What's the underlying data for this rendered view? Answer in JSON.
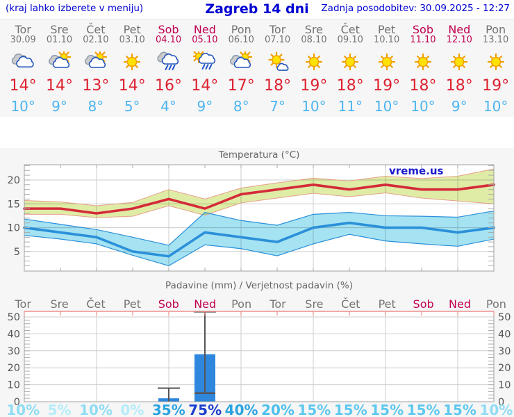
{
  "header": {
    "left_note": "(kraj lahko izberete v meniju)",
    "title": "Zagreb 14 dni",
    "updated": "Zadnja posodobitev: 30.09.2025 - 12:27"
  },
  "days": [
    {
      "name": "Tor",
      "date": "30.09",
      "weekend": false,
      "icon": "cloudy",
      "tmax_label": "14°",
      "tmin_label": "10°",
      "pop_label": "10%",
      "pop_color": "#8fdcf4"
    },
    {
      "name": "Sre",
      "date": "01.10",
      "weekend": false,
      "icon": "partly-cloudy",
      "tmax_label": "14°",
      "tmin_label": "9°",
      "pop_label": "5%",
      "pop_color": "#b4ecfa"
    },
    {
      "name": "Čet",
      "date": "02.10",
      "weekend": false,
      "icon": "partly-cloudy",
      "tmax_label": "13°",
      "tmin_label": "8°",
      "pop_label": "10%",
      "pop_color": "#8fdcf4"
    },
    {
      "name": "Pet",
      "date": "03.10",
      "weekend": false,
      "icon": "sunny",
      "tmax_label": "14°",
      "tmin_label": "5°",
      "pop_label": "0%",
      "pop_color": "#b4ecfa"
    },
    {
      "name": "Sob",
      "date": "04.10",
      "weekend": true,
      "icon": "rain",
      "tmax_label": "16°",
      "tmin_label": "4°",
      "pop_label": "35%",
      "pop_color": "#2ba3e0"
    },
    {
      "name": "Ned",
      "date": "05.10",
      "weekend": true,
      "icon": "sun-rain",
      "tmax_label": "14°",
      "tmin_label": "9°",
      "pop_label": "75%",
      "pop_color": "#1d3ecc"
    },
    {
      "name": "Pon",
      "date": "06.10",
      "weekend": false,
      "icon": "partly-cloudy",
      "tmax_label": "17°",
      "tmin_label": "8°",
      "pop_label": "40%",
      "pop_color": "#2ba3e0"
    },
    {
      "name": "Tor",
      "date": "07.10",
      "weekend": false,
      "icon": "sun-cloud",
      "tmax_label": "18°",
      "tmin_label": "7°",
      "pop_label": "20%",
      "pop_color": "#4cc0ec"
    },
    {
      "name": "Sre",
      "date": "08.10",
      "weekend": false,
      "icon": "sunny",
      "tmax_label": "19°",
      "tmin_label": "10°",
      "pop_label": "15%",
      "pop_color": "#5ec8ee"
    },
    {
      "name": "Čet",
      "date": "09.10",
      "weekend": false,
      "icon": "sunny",
      "tmax_label": "18°",
      "tmin_label": "11°",
      "pop_label": "15%",
      "pop_color": "#5ec8ee"
    },
    {
      "name": "Pet",
      "date": "10.10",
      "weekend": false,
      "icon": "sunny",
      "tmax_label": "19°",
      "tmin_label": "10°",
      "pop_label": "15%",
      "pop_color": "#5ec8ee"
    },
    {
      "name": "Sob",
      "date": "11.10",
      "weekend": true,
      "icon": "sunny",
      "tmax_label": "18°",
      "tmin_label": "10°",
      "pop_label": "15%",
      "pop_color": "#5ec8ee"
    },
    {
      "name": "Ned",
      "date": "12.10",
      "weekend": true,
      "icon": "sunny",
      "tmax_label": "18°",
      "tmin_label": "9°",
      "pop_label": "15%",
      "pop_color": "#5ec8ee"
    },
    {
      "name": "Pon",
      "date": "13.10",
      "weekend": false,
      "icon": "sunny",
      "tmax_label": "19°",
      "tmin_label": "10°",
      "pop_label": "10%",
      "pop_color": "#8fdcf4"
    }
  ],
  "chart_data": [
    {
      "type": "line",
      "title": "Temperatura (°C)",
      "watermark": "vreme.us",
      "categories": [
        "Tor",
        "Sre",
        "Čet",
        "Pet",
        "Sob",
        "Ned",
        "Pon",
        "Tor",
        "Sre",
        "Čet",
        "Pet",
        "Sob",
        "Ned",
        "Pon"
      ],
      "ylim": [
        1,
        23
      ],
      "yticks": [
        5,
        10,
        15,
        20
      ],
      "grid": true,
      "series": [
        {
          "name": "max_temp",
          "color": "#d42b3a",
          "values": [
            14,
            14,
            13,
            14,
            16,
            14,
            17,
            18,
            19,
            18,
            19,
            18,
            18,
            19
          ]
        },
        {
          "name": "max_range_upper",
          "values": [
            15.7,
            15.4,
            14.6,
            15.3,
            18.0,
            16.0,
            18.3,
            19.4,
            20.4,
            19.8,
            20.8,
            20.3,
            20.8,
            22.3
          ]
        },
        {
          "name": "max_range_lower",
          "values": [
            12.8,
            12.8,
            12.1,
            12.4,
            14.6,
            12.6,
            15.2,
            16.2,
            17.2,
            16.5,
            17.3,
            16.2,
            15.6,
            15.0
          ]
        },
        {
          "name": "min_temp",
          "color": "#2b90d9",
          "values": [
            10,
            9,
            8,
            5,
            4,
            9,
            8,
            7,
            10,
            11,
            10,
            10,
            9,
            10
          ]
        },
        {
          "name": "min_range_upper",
          "values": [
            11.8,
            10.7,
            9.6,
            8.0,
            6.3,
            13.2,
            11.5,
            10.5,
            12.8,
            13.2,
            12.5,
            12.4,
            12.2,
            13.5
          ]
        },
        {
          "name": "min_range_lower",
          "values": [
            8.4,
            7.6,
            6.6,
            4.2,
            2.0,
            6.4,
            5.6,
            4.1,
            6.6,
            8.6,
            7.2,
            6.6,
            6.1,
            7.6
          ]
        }
      ]
    },
    {
      "type": "bar",
      "title": "Padavine (mm) / Verjetnost padavin (%)",
      "categories": [
        "Tor",
        "Sre",
        "Čet",
        "Pet",
        "Sob",
        "Ned",
        "Pon",
        "Tor",
        "Sre",
        "Čet",
        "Pet",
        "Sob",
        "Ned",
        "Pon"
      ],
      "weekend_index": [
        4,
        5,
        11,
        12
      ],
      "values": [
        0,
        0,
        0,
        0,
        2,
        28,
        0,
        0,
        0,
        0,
        0,
        0,
        0,
        0
      ],
      "range_low": [
        null,
        null,
        null,
        null,
        0,
        5,
        null,
        null,
        null,
        null,
        null,
        null,
        null,
        null
      ],
      "range_high": [
        null,
        null,
        null,
        null,
        8,
        53,
        null,
        null,
        null,
        null,
        null,
        null,
        null,
        null
      ],
      "probability_pct": [
        10,
        5,
        10,
        0,
        35,
        75,
        40,
        20,
        15,
        15,
        15,
        15,
        15,
        10
      ],
      "ylim": [
        0,
        50
      ],
      "yticks": [
        0,
        10,
        20,
        30,
        40,
        50
      ],
      "grid": true
    }
  ],
  "colors": {
    "header_blue": "#0000d2",
    "weekday_gray": "#737373",
    "weekend_red": "#c00050",
    "tmax_red": "#de2130",
    "tmin_blue": "#4cb4f0",
    "max_line": "#d42b3a",
    "max_band": "#dfeca6",
    "max_band_edge": "#e8a08c",
    "min_line": "#2b90d9",
    "min_band": "#a5e2f2",
    "bar_blue": "#2e86dd",
    "whisker_gray": "#555555",
    "watermark_blue": "#1a1acc",
    "axis_text": "#555555",
    "title_text": "#666666",
    "grid_line": "#cccccc",
    "plot_border": "#a0a0a0",
    "pink_axis": "#ee8f8f"
  }
}
